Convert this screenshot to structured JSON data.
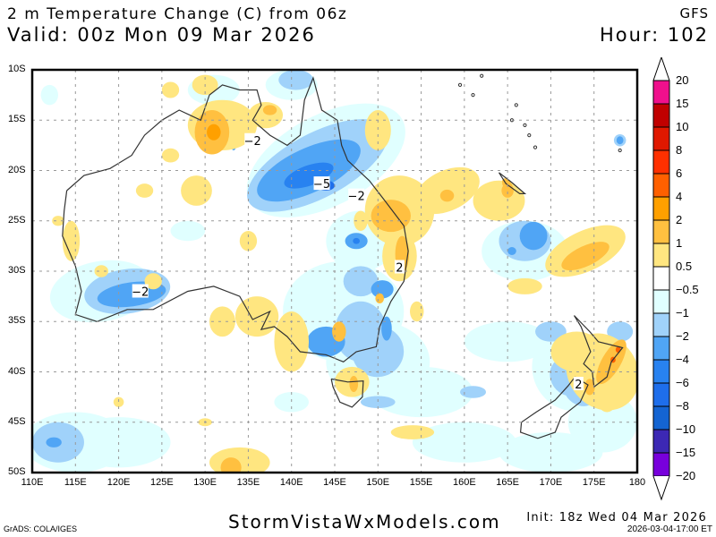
{
  "header": {
    "title": "2 m Temperature Change (C) from 06z",
    "valid": "Valid: 00z Mon 09 Mar 2026",
    "model": "GFS",
    "hour": "Hour: 102"
  },
  "map": {
    "region": "Australia / New Zealand",
    "lat_labels": [
      "10S",
      "15S",
      "20S",
      "25S",
      "30S",
      "35S",
      "40S",
      "45S",
      "50S"
    ],
    "lon_labels": [
      "110E",
      "115E",
      "120E",
      "125E",
      "130E",
      "135E",
      "140E",
      "145E",
      "150E",
      "155E",
      "160E",
      "165E",
      "170E",
      "175E",
      "180"
    ],
    "lat_range": [
      -50,
      -10
    ],
    "lon_range": [
      110,
      180
    ],
    "contour_labels": [
      {
        "text": "-2",
        "lon": 135.5,
        "lat": -17.0
      },
      {
        "text": "-5",
        "lon": 143.5,
        "lat": -21.3
      },
      {
        "text": "-2",
        "lon": 147.5,
        "lat": -22.5
      },
      {
        "text": "-2",
        "lon": 122.5,
        "lat": -32.0
      },
      {
        "text": "2",
        "lon": 152.5,
        "lat": -29.6
      },
      {
        "text": "2",
        "lon": 173.2,
        "lat": -41.2
      }
    ]
  },
  "colorbar": {
    "levels": [
      {
        "label": "20",
        "color": "#f0108c"
      },
      {
        "label": "15",
        "color": "#c00000"
      },
      {
        "label": "10",
        "color": "#e01800"
      },
      {
        "label": "8",
        "color": "#ff3000"
      },
      {
        "label": "6",
        "color": "#ff6000"
      },
      {
        "label": "4",
        "color": "#ffa000"
      },
      {
        "label": "2",
        "color": "#ffc040"
      },
      {
        "label": "1",
        "color": "#ffe680"
      },
      {
        "label": "0.5",
        "color": "#ffffff"
      },
      {
        "label": "-0.5",
        "color": "#e0ffff"
      },
      {
        "label": "-1",
        "color": "#a0d2fa"
      },
      {
        "label": "-2",
        "color": "#50a5f5"
      },
      {
        "label": "-4",
        "color": "#2882f0"
      },
      {
        "label": "-6",
        "color": "#1e6eeb"
      },
      {
        "label": "-8",
        "color": "#1464d2"
      },
      {
        "label": "-10",
        "color": "#3c28b4"
      },
      {
        "label": "-15",
        "color": "#7800dc"
      },
      {
        "label": "-20",
        "color": ""
      }
    ]
  },
  "footer": {
    "grads": "GrADS: COLA/IGES",
    "site": "StormVistaWxModels.com",
    "init": "Init: 18z Wed 04 Mar 2026",
    "timestamp": "2026-03-04-17:00 ET"
  }
}
